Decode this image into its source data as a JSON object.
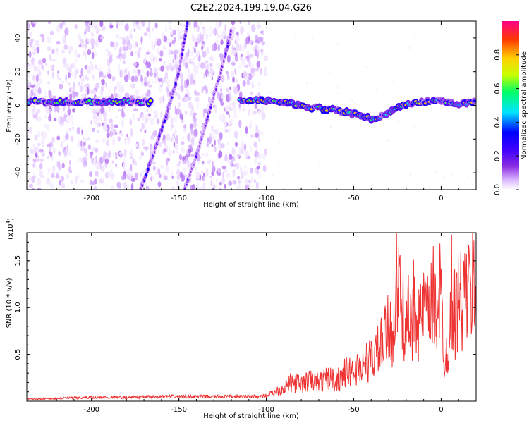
{
  "title": "C2E2.2024.199.19.04.G26",
  "chart_data": [
    {
      "type": "heatmap",
      "name": "spectrogram",
      "xlabel": "Height of straight line (km)",
      "ylabel": "Frequency (Hz)",
      "xlim": [
        -237,
        20
      ],
      "ylim": [
        -50,
        50
      ],
      "x_ticks": [
        -200,
        -150,
        -100,
        -50,
        0
      ],
      "x_tick_labels": [
        "-200",
        "-150",
        "-100",
        "-50",
        "0"
      ],
      "y_ticks": [
        -40,
        -20,
        0,
        20,
        40
      ],
      "y_tick_labels": [
        "-40",
        "-20",
        "0",
        "20",
        "40"
      ],
      "colorbar": {
        "label": "Normalized spectral amplitude",
        "range": [
          0,
          1
        ],
        "ticks": [
          0.0,
          0.2,
          0.4,
          0.6,
          0.8
        ],
        "tick_labels": [
          "0.0",
          "0.2",
          "0.4",
          "0.6",
          "0.8"
        ],
        "colormap": [
          "#ffffff",
          "#d9b3ff",
          "#8a2be2",
          "#3c00ff",
          "#0000ff",
          "#00e5ff",
          "#00ff66",
          "#c8ff00",
          "#ffd000",
          "#ff3a00",
          "#ff0088"
        ]
      },
      "features": [
        {
          "label": "carrier line",
          "points": [
            [
              -237,
              2
            ],
            [
              -200,
              2
            ],
            [
              -180,
              2
            ],
            [
              -165,
              2
            ]
          ],
          "level": 0.55
        },
        {
          "label": "carrier line",
          "points": [
            [
              -115,
              3
            ],
            [
              -100,
              3
            ],
            [
              -90,
              2
            ],
            [
              -75,
              -1
            ],
            [
              -60,
              -3
            ],
            [
              -50,
              -5
            ],
            [
              -40,
              -8
            ],
            [
              -32,
              -6
            ],
            [
              -26,
              -2
            ],
            [
              -20,
              1
            ],
            [
              -10,
              2
            ],
            [
              0,
              3
            ],
            [
              10,
              1
            ],
            [
              20,
              2
            ]
          ],
          "level": 0.65
        },
        {
          "label": "streak",
          "points": [
            [
              -172,
              -50
            ],
            [
              -165,
              -30
            ],
            [
              -157,
              -5
            ],
            [
              -150,
              20
            ],
            [
              -145,
              50
            ]
          ],
          "level": 0.3
        },
        {
          "label": "streak",
          "points": [
            [
              -147,
              -50
            ],
            [
              -140,
              -30
            ],
            [
              -133,
              -5
            ],
            [
              -126,
              20
            ],
            [
              -120,
              45
            ]
          ],
          "level": 0.25
        }
      ]
    },
    {
      "type": "line",
      "name": "snr",
      "xlabel": "Height of straight line (km)",
      "ylabel": "SNR (10 * v/v)",
      "multiplier_label": "(x10",
      "multiplier_exp": "4",
      "multiplier_close": ")",
      "xlim": [
        -237,
        20
      ],
      "ylim": [
        0,
        1.8
      ],
      "x_ticks": [
        -200,
        -150,
        -100,
        -50,
        0
      ],
      "x_tick_labels": [
        "-200",
        "-150",
        "-100",
        "-50",
        "0"
      ],
      "y_ticks": [
        0.5,
        1.0,
        1.5
      ],
      "y_tick_labels": [
        "0.5",
        "1.0",
        "1.5"
      ],
      "series": [
        {
          "name": "SNR",
          "color": "#ee3333",
          "x": [
            -237,
            -220,
            -200,
            -180,
            -160,
            -140,
            -120,
            -105,
            -100,
            -95,
            -90,
            -85,
            -80,
            -75,
            -70,
            -65,
            -60,
            -55,
            -50,
            -45,
            -40,
            -35,
            -30,
            -27,
            -25,
            -22,
            -20,
            -17,
            -15,
            -12,
            -10,
            -7,
            -5,
            -3,
            -1,
            0,
            2,
            4,
            6,
            8,
            10,
            12,
            14,
            16,
            18,
            20
          ],
          "y": [
            0.02,
            0.03,
            0.04,
            0.04,
            0.05,
            0.05,
            0.05,
            0.05,
            0.06,
            0.1,
            0.15,
            0.2,
            0.18,
            0.22,
            0.2,
            0.25,
            0.22,
            0.3,
            0.32,
            0.38,
            0.45,
            0.55,
            0.75,
            0.8,
            1.3,
            0.9,
            1.0,
            0.7,
            1.2,
            0.8,
            1.0,
            0.85,
            1.1,
            1.0,
            1.2,
            1.05,
            0.4,
            0.6,
            1.2,
            0.9,
            1.1,
            1.0,
            1.2,
            1.1,
            1.25,
            1.2
          ]
        }
      ]
    }
  ]
}
